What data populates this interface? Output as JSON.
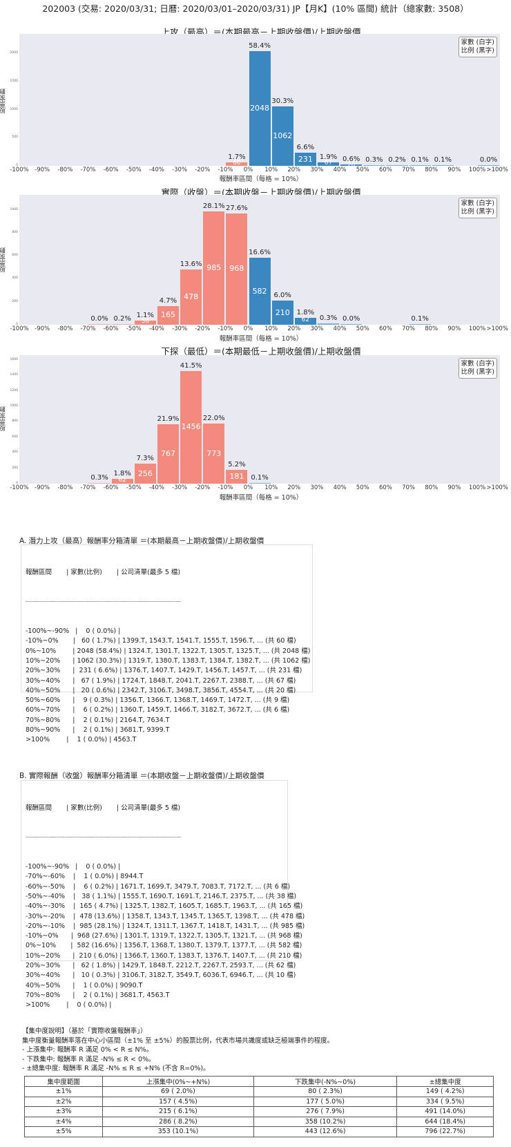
{
  "header": {
    "title": "202003 (交易: 2020/03/31; 日曆: 2020/03/01–2020/03/31) JP【月K】(10% 區間) 統計（總家數: 3508）"
  },
  "legend": {
    "line1": "家數 (白字)",
    "line2": "比例 (黑字)"
  },
  "colors": {
    "negative": "#f28b7e",
    "positive": "#3b87bf",
    "plot_bg": "#e9e9f1"
  },
  "x_ticks": [
    "-100%",
    "-90%",
    "-80%",
    "-70%",
    "-60%",
    "-50%",
    "-40%",
    "-30%",
    "-20%",
    "-10%",
    "0%",
    "10%",
    "20%",
    "30%",
    "40%",
    "50%",
    "60%",
    "70%",
    "80%",
    "90%",
    "100%",
    ">100%"
  ],
  "chart_data": [
    {
      "type": "bar",
      "title": "上攻（最高）＝(本期最高－上期收盤價)/上期收盤價",
      "xlabel": "報酬率區間（每格 = 10%）",
      "ylabel": "股票家數",
      "yticks": [
        0,
        500,
        1000,
        1500,
        2000
      ],
      "ylim": [
        0,
        2350
      ],
      "categories": [
        "-100%~-90%",
        "-90%~-80%",
        "-80%~-70%",
        "-70%~-60%",
        "-60%~-50%",
        "-50%~-40%",
        "-40%~-30%",
        "-30%~-20%",
        "-20%~-10%",
        "-10%~0%",
        "0%~10%",
        "10%~20%",
        "20%~30%",
        "30%~40%",
        "40%~50%",
        "50%~60%",
        "60%~70%",
        "70%~80%",
        "80%~90%",
        "90%~100%",
        ">100%"
      ],
      "values": [
        0,
        0,
        0,
        0,
        0,
        0,
        0,
        0,
        0,
        60,
        2048,
        1062,
        231,
        67,
        20,
        9,
        6,
        2,
        2,
        0,
        1
      ],
      "percent_labels": [
        "",
        "",
        "",
        "",
        "",
        "",
        "",
        "",
        "",
        "1.7%",
        "58.4%",
        "30.3%",
        "6.6%",
        "1.9%",
        "0.6%",
        "0.3%",
        "0.2%",
        "0.1%",
        "0.1%",
        "",
        "0.0%"
      ],
      "count_labels": [
        "",
        "",
        "",
        "",
        "",
        "",
        "",
        "",
        "",
        "60",
        "2048",
        "1062",
        "231",
        "67",
        "20",
        "",
        "",
        "",
        "",
        "",
        ""
      ]
    },
    {
      "type": "bar",
      "title": "實際（收盤）＝(本期收盤－上期收盤價)/上期收盤價",
      "xlabel": "報酬率區間（每格 = 10%）",
      "ylabel": "股票家數",
      "yticks": [
        0,
        200,
        400,
        600,
        800,
        1000
      ],
      "ylim": [
        0,
        1130
      ],
      "categories": [
        "-100%~-90%",
        "-90%~-80%",
        "-80%~-70%",
        "-70%~-60%",
        "-60%~-50%",
        "-50%~-40%",
        "-40%~-30%",
        "-30%~-20%",
        "-20%~-10%",
        "-10%~0%",
        "0%~10%",
        "10%~20%",
        "20%~30%",
        "30%~40%",
        "40%~50%",
        "50%~60%",
        "60%~70%",
        "70%~80%",
        "80%~90%",
        "90%~100%",
        ">100%"
      ],
      "values": [
        0,
        0,
        0,
        1,
        6,
        38,
        165,
        478,
        985,
        968,
        582,
        210,
        62,
        10,
        1,
        0,
        0,
        2,
        0,
        0,
        0
      ],
      "percent_labels": [
        "",
        "",
        "",
        "0.0%",
        "0.2%",
        "1.1%",
        "4.7%",
        "13.6%",
        "28.1%",
        "27.6%",
        "16.6%",
        "6.0%",
        "1.8%",
        "0.3%",
        "0.0%",
        "",
        "",
        "0.1%",
        "",
        "",
        ""
      ],
      "count_labels": [
        "",
        "",
        "",
        "",
        "",
        "38",
        "165",
        "478",
        "985",
        "968",
        "582",
        "210",
        "62",
        "",
        "",
        "",
        "",
        "",
        "",
        "",
        ""
      ]
    },
    {
      "type": "bar",
      "title": "下探（最低）＝(本期最低－上期收盤價)/上期收盤價",
      "xlabel": "報酬率區間（每格 = 10%）",
      "ylabel": "股票家數",
      "yticks": [
        0,
        200,
        400,
        600,
        800,
        1000,
        1200,
        1400,
        1600
      ],
      "ylim": [
        0,
        1660
      ],
      "categories": [
        "-100%~-90%",
        "-90%~-80%",
        "-80%~-70%",
        "-70%~-60%",
        "-60%~-50%",
        "-50%~-40%",
        "-40%~-30%",
        "-30%~-20%",
        "-20%~-10%",
        "-10%~0%",
        "0%~10%",
        "10%~20%",
        "20%~30%",
        "30%~40%",
        "40%~50%",
        "50%~60%",
        "60%~70%",
        "70%~80%",
        "80%~90%",
        "90%~100%",
        ">100%"
      ],
      "values": [
        0,
        0,
        0,
        11,
        62,
        256,
        767,
        1456,
        773,
        181,
        2,
        0,
        0,
        0,
        0,
        0,
        0,
        0,
        0,
        0,
        0
      ],
      "percent_labels": [
        "",
        "",
        "",
        "0.3%",
        "1.8%",
        "7.3%",
        "21.9%",
        "41.5%",
        "22.0%",
        "5.2%",
        "0.1%",
        "",
        "",
        "",
        "",
        "",
        "",
        "",
        "",
        "",
        ""
      ],
      "count_labels": [
        "",
        "",
        "",
        "",
        "62",
        "256",
        "767",
        "1456",
        "773",
        "181",
        "",
        "",
        "",
        "",
        "",
        "",
        "",
        "",
        "",
        "",
        ""
      ]
    }
  ],
  "section_a": {
    "title": "A. 潛力上攻（最高）報酬率分箱清單 ＝(本期最高－上期收盤價)/上期收盤價",
    "header": "報酬區間       | 家數(比例)       | 公司清單(最多 5 檔)",
    "divider": "--------------------------------------------------------------------------------------------------------",
    "rows": [
      "-100%~-90%   |    0 ( 0.0%) |",
      "-10%~0%       |   60 ( 1.7%) | 1399.T, 1543.T, 1541.T, 1555.T, 1596.T, ... (共 60 檔)",
      "0%~10%        | 2048 (58.4%) | 1324.T, 1301.T, 1322.T, 1305.T, 1325.T, ... (共 2048 檔)",
      "10%~20%      | 1062 (30.3%) | 1319.T, 1380.T, 1383.T, 1384.T, 1382.T, ... (共 1062 檔)",
      "20%~30%      |  231 ( 6.6%) | 1376.T, 1407.T, 1429.T, 1456.T, 1457.T, ... (共 231 檔)",
      "30%~40%      |   67 ( 1.9%) | 1724.T, 1848.T, 2041.T, 2267.T, 2388.T, ... (共 67 檔)",
      "40%~50%      |   20 ( 0.6%) | 2342.T, 3106.T, 3498.T, 3856.T, 4554.T, ... (共 20 檔)",
      "50%~60%      |    9 ( 0.3%) | 1356.T, 1366.T, 1368.T, 1469.T, 1472.T, ... (共 9 檔)",
      "60%~70%      |    6 ( 0.2%) | 1360.T, 1459.T, 1466.T, 3182.T, 3672.T, ... (共 6 檔)",
      "70%~80%      |    2 ( 0.1%) | 2164.T, 7634.T",
      "80%~90%      |    2 ( 0.1%) | 3681.T, 9399.T",
      ">100%        |    1 ( 0.0%) | 4563.T"
    ]
  },
  "section_b": {
    "title": "B. 實際報酬（收盤）報酬率分箱清單 ＝(本期收盤－上期收盤價)/上期收盤價",
    "header": "報酬區間       | 家數(比例)       | 公司清單(最多 5 檔)",
    "divider": "--------------------------------------------------------------------------------------------------------",
    "rows": [
      "-100%~-90%   |    0 ( 0.0%) |",
      "-70%~-60%    |    1 ( 0.0%) | 8944.T",
      "-60%~-50%    |    6 ( 0.2%) | 1671.T, 1699.T, 3479.T, 7083.T, 7172.T, ... (共 6 檔)",
      "-50%~-40%    |   38 ( 1.1%) | 1555.T, 1690.T, 1691.T, 2146.T, 2375.T, ... (共 38 檔)",
      "-40%~-30%    |  165 ( 4.7%) | 1325.T, 1382.T, 1605.T, 1685.T, 1963.T, ... (共 165 檔)",
      "-30%~-20%    |  478 (13.6%) | 1358.T, 1343.T, 1345.T, 1365.T, 1398.T, ... (共 478 檔)",
      "-20%~-10%    |  985 (28.1%) | 1324.T, 1311.T, 1367.T, 1418.T, 1431.T, ... (共 985 檔)",
      "-10%~0%      |  968 (27.6%) | 1301.T, 1319.T, 1322.T, 1305.T, 1321.T, ... (共 968 檔)",
      "0%~10%       |  582 (16.6%) | 1356.T, 1368.T, 1380.T, 1379.T, 1377.T, ... (共 582 檔)",
      "10%~20%      |  210 ( 6.0%) | 1366.T, 1360.T, 1383.T, 1376.T, 1407.T, ... (共 210 檔)",
      "20%~30%      |   62 ( 1.8%) | 1429.T, 1848.T, 2212.T, 2267.T, 2593.T, ... (共 62 檔)",
      "30%~40%      |   10 ( 0.3%) | 3106.T, 3182.T, 3549.T, 6036.T, 6946.T, ... (共 10 檔)",
      "40%~50%      |    1 ( 0.0%) | 9090.T",
      "70%~80%      |    2 ( 0.1%) | 3681.T, 4563.T",
      ">100%        |    0 ( 0.0%) |"
    ]
  },
  "concentration": {
    "title": "【集中度說明】（基於「實際收盤報酬率」）",
    "description": "集中度衡量報酬率落在中心小區間（±1% 至 ±5%）的股票比例，代表市場共識度或缺乏極端事件的程度。",
    "rules": [
      " - 上漲集中: 報酬率 R 滿足 0% < R ≤ N%。",
      " - 下跌集中: 報酬率 R 滿足 -N% ≤ R < 0%。",
      " - ±總集中度: 報酬率 R 滿足 -N% ≤ R ≤ +N% (不含 R=0%)。"
    ],
    "columns": [
      "集中度範圍",
      "上漲集中(0%~+N%)",
      "下跌集中(-N%~0%)",
      "±總集中度"
    ],
    "rows": [
      [
        "±1%",
        "69 ( 2.0%)",
        "80 ( 2.3%)",
        "149 ( 4.2%)"
      ],
      [
        "±2%",
        "157 ( 4.5%)",
        "177 ( 5.0%)",
        "334 ( 9.5%)"
      ],
      [
        "±3%",
        "215 ( 6.1%)",
        "276 ( 7.9%)",
        "491 (14.0%)"
      ],
      [
        "±4%",
        "286 ( 8.2%)",
        "358 (10.2%)",
        "644 (18.4%)"
      ],
      [
        "±5%",
        "353 (10.1%)",
        "443 (12.6%)",
        "796 (22.7%)"
      ]
    ]
  }
}
